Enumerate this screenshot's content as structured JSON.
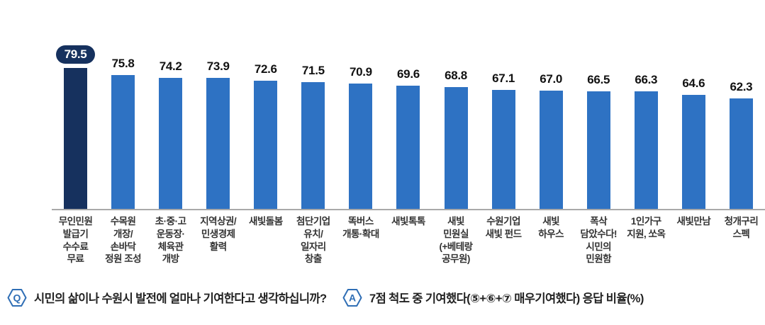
{
  "chart_data": {
    "type": "bar",
    "title": "",
    "xlabel": "",
    "ylabel": "",
    "unit": "%",
    "ylim": [
      0,
      95
    ],
    "grid": false,
    "legend": false,
    "highlight_index": 0,
    "categories": [
      [
        "무인민원",
        "발급기",
        "수수료",
        "무료"
      ],
      [
        "수목원",
        "개장/",
        "손바닥",
        "정원 조성"
      ],
      [
        "초·중·고",
        "운동장·",
        "체육관",
        "개방"
      ],
      [
        "지역상권/",
        "민생경제",
        "활력"
      ],
      [
        "새빛돌봄"
      ],
      [
        "첨단기업",
        "유치/",
        "일자리",
        "창출"
      ],
      [
        "똑버스",
        "개통·확대"
      ],
      [
        "새빛톡톡"
      ],
      [
        "새빛",
        "민원실",
        "(+베테랑",
        "공무원)"
      ],
      [
        "수원기업",
        "새빛 펀드"
      ],
      [
        "새빛",
        "하우스"
      ],
      [
        "폭삭",
        "담았수다!",
        "시민의",
        "민원함"
      ],
      [
        "1인가구",
        "지원, 쏘옥"
      ],
      [
        "새빛만남"
      ],
      [
        "청개구리",
        "스펙"
      ]
    ],
    "values": [
      79.5,
      75.8,
      74.2,
      73.9,
      72.6,
      71.5,
      70.9,
      69.6,
      68.8,
      67.1,
      67.0,
      66.5,
      66.3,
      64.6,
      62.3
    ],
    "colors": {
      "highlight_bar": "#16315e",
      "bar": "#2e72c3",
      "baseline": "#a9a9a9",
      "value_text": "#121212",
      "label_text": "#333333"
    }
  },
  "qa": {
    "q_badge": "Q",
    "q_text": "시민의 삶이나 수원시 발전에 얼마나 기여한다고 생각하십니까?",
    "a_badge": "A",
    "a_text": "7점 척도 중 기여했다(⑤+⑥+⑦ 매우기여했다) 응답 비율(%)",
    "accent": "#2f6eb5"
  }
}
